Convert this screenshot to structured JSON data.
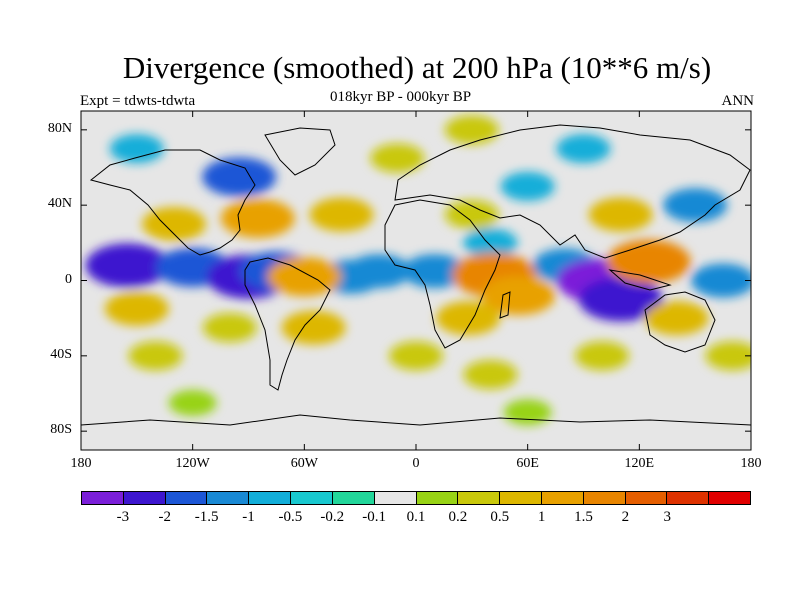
{
  "title": "Divergence (smoothed) at 200 hPa (10**6 m/s)",
  "experiment": "Expt = tdwts-tdwta",
  "period": "018kyr BP - 000kyr BP",
  "season": "ANN",
  "lat_ticks": [
    "80N",
    "40N",
    "0",
    "40S",
    "80S"
  ],
  "lon_ticks": [
    "180",
    "120W",
    "60W",
    "0",
    "60E",
    "120E",
    "180"
  ],
  "colorbar": {
    "colors": [
      "#7b1fd9",
      "#3d16cf",
      "#1c56d6",
      "#1989d4",
      "#12aed9",
      "#18c8cf",
      "#22d69a",
      "#e6e6e6",
      "#98d315",
      "#c9c80b",
      "#ddb700",
      "#e8a100",
      "#e88500",
      "#e55e00",
      "#de3200",
      "#e10000"
    ],
    "labels": [
      "-3",
      "-2",
      "-1.5",
      "-1",
      "-0.5",
      "-0.2",
      "-0.1",
      "0.1",
      "0.2",
      "0.5",
      "1",
      "1.5",
      "2",
      "3"
    ]
  },
  "map_data": {
    "type": "filled-contour",
    "projection": "cylindrical-equidistant",
    "lon_range": [
      -180,
      180
    ],
    "lat_range": [
      -90,
      90
    ],
    "features": [
      {
        "lon": -155,
        "lat": 8,
        "value": -2
      },
      {
        "lon": -120,
        "lat": 7,
        "value": -1.5
      },
      {
        "lon": -90,
        "lat": 2,
        "value": -2
      },
      {
        "lon": -75,
        "lat": 5,
        "value": -1.5
      },
      {
        "lon": -35,
        "lat": 2,
        "value": -1
      },
      {
        "lon": -20,
        "lat": 5,
        "value": -1
      },
      {
        "lon": 10,
        "lat": 5,
        "value": -1
      },
      {
        "lon": 80,
        "lat": 8,
        "value": -1
      },
      {
        "lon": 98,
        "lat": 0,
        "value": -3
      },
      {
        "lon": 110,
        "lat": -10,
        "value": -2
      },
      {
        "lon": 165,
        "lat": 0,
        "value": -1
      },
      {
        "lon": -95,
        "lat": 55,
        "value": -1.5
      },
      {
        "lon": -150,
        "lat": 70,
        "value": -0.5
      },
      {
        "lon": 60,
        "lat": 50,
        "value": -0.5
      },
      {
        "lon": 150,
        "lat": 40,
        "value": -1
      },
      {
        "lon": 90,
        "lat": 70,
        "value": -0.5
      },
      {
        "lon": 40,
        "lat": 20,
        "value": -0.5
      },
      {
        "lon": -130,
        "lat": 30,
        "value": 1
      },
      {
        "lon": -85,
        "lat": 33,
        "value": 1.5
      },
      {
        "lon": -40,
        "lat": 35,
        "value": 1
      },
      {
        "lon": 30,
        "lat": 35,
        "value": 0.5
      },
      {
        "lon": 125,
        "lat": 10,
        "value": 2
      },
      {
        "lon": 110,
        "lat": 35,
        "value": 1
      },
      {
        "lon": 42,
        "lat": 3,
        "value": 2
      },
      {
        "lon": 55,
        "lat": -8,
        "value": 1.5
      },
      {
        "lon": 28,
        "lat": -20,
        "value": 1
      },
      {
        "lon": -60,
        "lat": 2,
        "value": 1.5
      },
      {
        "lon": -55,
        "lat": -25,
        "value": 1
      },
      {
        "lon": -150,
        "lat": -15,
        "value": 1
      },
      {
        "lon": -140,
        "lat": -40,
        "value": 0.5
      },
      {
        "lon": -100,
        "lat": -25,
        "value": 0.5
      },
      {
        "lon": 0,
        "lat": -40,
        "value": 0.5
      },
      {
        "lon": 40,
        "lat": -50,
        "value": 0.5
      },
      {
        "lon": 100,
        "lat": -40,
        "value": 0.5
      },
      {
        "lon": 140,
        "lat": -20,
        "value": 1
      },
      {
        "lon": 170,
        "lat": -40,
        "value": 0.5
      },
      {
        "lon": -120,
        "lat": -65,
        "value": 0.2
      },
      {
        "lon": 60,
        "lat": -70,
        "value": 0.2
      },
      {
        "lon": -10,
        "lat": 65,
        "value": 0.5
      },
      {
        "lon": 30,
        "lat": 80,
        "value": 0.5
      }
    ]
  }
}
